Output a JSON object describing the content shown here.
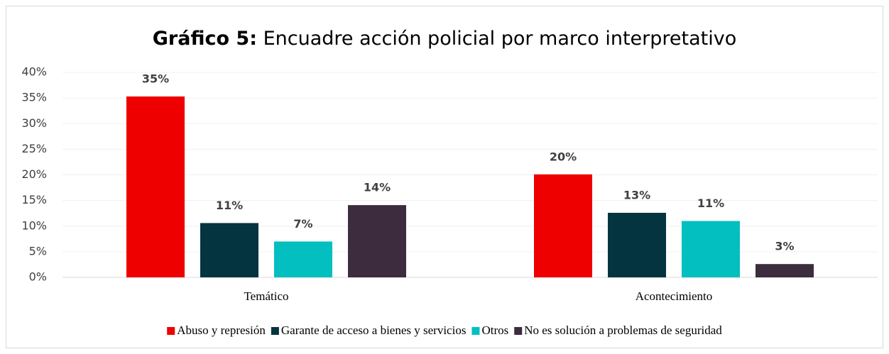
{
  "chart_data": {
    "type": "bar",
    "title_prefix": "Gráfico 5:",
    "title": "Encuadre acción policial por marco interpretativo",
    "categories": [
      "Temático",
      "Acontecimiento"
    ],
    "series": [
      {
        "name": "Abuso y represión",
        "color": "#ee0000",
        "values": [
          35.3,
          20.1
        ],
        "value_labels": [
          "35%",
          "20%"
        ]
      },
      {
        "name": "Garante de acceso a bienes y servicios",
        "color": "#033440",
        "values": [
          10.6,
          12.6
        ],
        "value_labels": [
          "11%",
          "13%"
        ]
      },
      {
        "name": "Otros",
        "color": "#04bfbf",
        "values": [
          7.0,
          11.0
        ],
        "value_labels": [
          "7%",
          "11%"
        ]
      },
      {
        "name": "No es solución a problemas de seguridad",
        "color": "#3d2b3e",
        "values": [
          14.1,
          2.6
        ],
        "value_labels": [
          "14%",
          "3%"
        ]
      }
    ],
    "ylim": [
      0,
      40
    ],
    "yticks": [
      {
        "value": 0,
        "label": "0%"
      },
      {
        "value": 5,
        "label": "5%"
      },
      {
        "value": 10,
        "label": "10%"
      },
      {
        "value": 15,
        "label": "15%"
      },
      {
        "value": 20,
        "label": "20%"
      },
      {
        "value": 25,
        "label": "25%"
      },
      {
        "value": 30,
        "label": "30%"
      },
      {
        "value": 35,
        "label": "35%"
      },
      {
        "value": 40,
        "label": "40%"
      }
    ],
    "grid": true,
    "legend": "bottom"
  }
}
